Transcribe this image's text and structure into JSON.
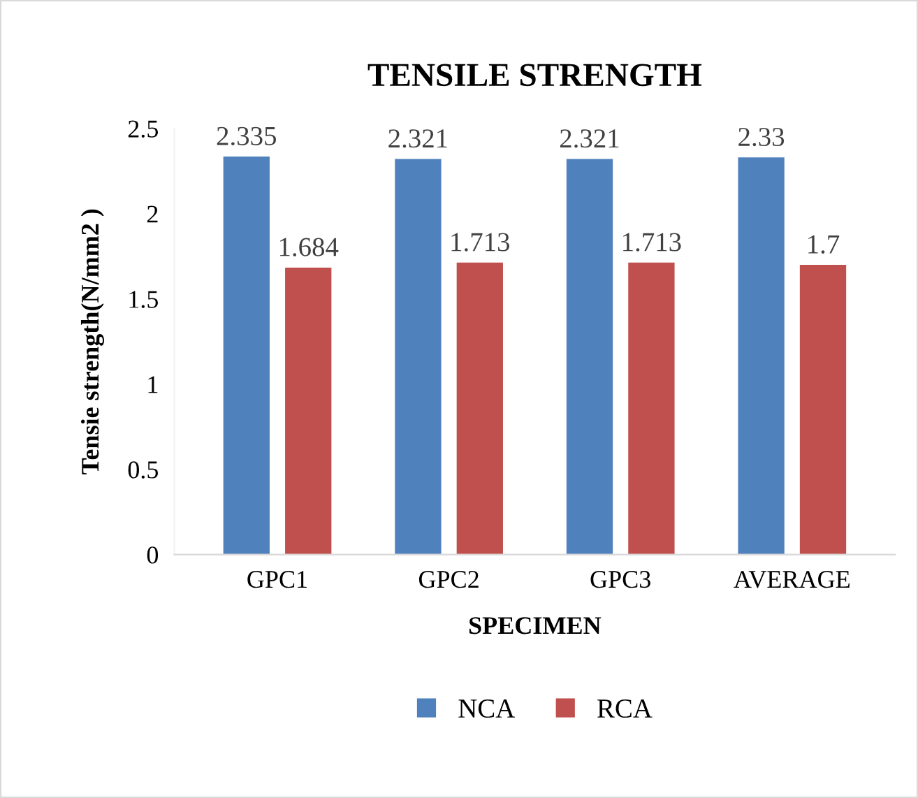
{
  "chart_data": {
    "type": "bar",
    "title": "TENSILE STRENGTH",
    "xlabel": "SPECIMEN",
    "ylabel": "Tensie strength(N/mm2 )",
    "categories": [
      "GPC1",
      "GPC2",
      "GPC3",
      "AVERAGE"
    ],
    "series": [
      {
        "name": "NCA",
        "color": "#4f81bd",
        "values": [
          2.335,
          2.321,
          2.321,
          2.33
        ]
      },
      {
        "name": "RCA",
        "color": "#c0504d",
        "values": [
          1.684,
          1.713,
          1.713,
          1.7
        ]
      }
    ],
    "ylim": [
      0,
      2.5
    ],
    "yticks": [
      0,
      0.5,
      1,
      1.5,
      2,
      2.5
    ],
    "grid": false,
    "legend": "bottom",
    "data_labels": true
  }
}
